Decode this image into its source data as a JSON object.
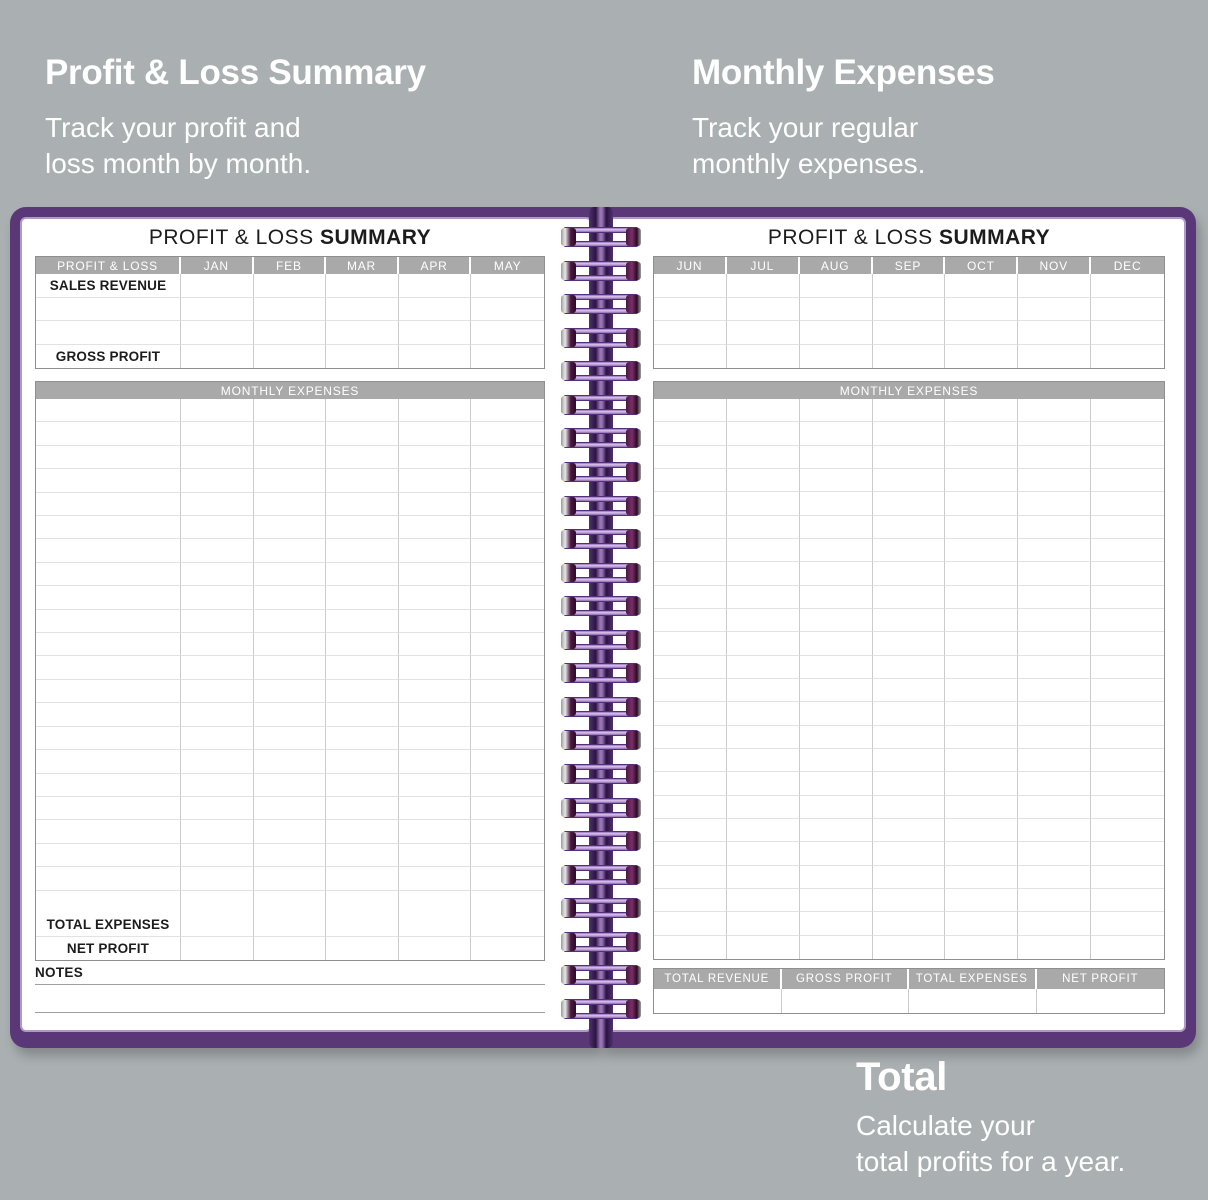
{
  "colors": {
    "background": "#aab0b1",
    "cover_purple": "#5a3878",
    "coil_purple": "#a97fc9",
    "table_header_gray": "#a9a9a9",
    "text_black": "#1c1c1c",
    "annotation_white": "#ffffff"
  },
  "annotations": {
    "left": {
      "title": "Profit & Loss Summary",
      "subtitle_lines": [
        "Track your profit and",
        "loss month by month."
      ]
    },
    "right": {
      "title": "Monthly Expenses",
      "subtitle_lines": [
        "Track your regular",
        "monthly expenses."
      ]
    },
    "bottom": {
      "title": "Total",
      "subtitle_lines": [
        "Calculate your",
        "total profits for a year."
      ]
    }
  },
  "left_page": {
    "title_regular": "PROFIT & LOSS ",
    "title_bold": "SUMMARY",
    "pl_table": {
      "headers": [
        "PROFIT & LOSS",
        "JAN",
        "FEB",
        "MAR",
        "APR",
        "MAY"
      ],
      "rows": [
        {
          "label": "SALES REVENUE"
        },
        {
          "label": ""
        },
        {
          "label": ""
        },
        {
          "label": "GROSS PROFIT"
        }
      ]
    },
    "expenses_header": "MONTHLY EXPENSES",
    "expenses_blank_rows": 22,
    "total_rows": [
      {
        "label": "TOTAL EXPENSES"
      },
      {
        "label": "NET PROFIT"
      }
    ],
    "notes_label": "NOTES",
    "notes_lines": 2
  },
  "right_page": {
    "title_regular": "PROFIT & LOSS ",
    "title_bold": "SUMMARY",
    "pl_table": {
      "headers": [
        "JUN",
        "JUL",
        "AUG",
        "SEP",
        "OCT",
        "NOV",
        "DEC"
      ],
      "blank_rows": 4
    },
    "expenses_header": "MONTHLY EXPENSES",
    "expenses_blank_rows": 24,
    "totals_bar": {
      "headers": [
        "TOTAL REVENUE",
        "GROSS PROFIT",
        "TOTAL EXPENSES",
        "NET PROFIT"
      ],
      "blank_rows": 1
    }
  },
  "spiral": {
    "coil_count": 24
  }
}
